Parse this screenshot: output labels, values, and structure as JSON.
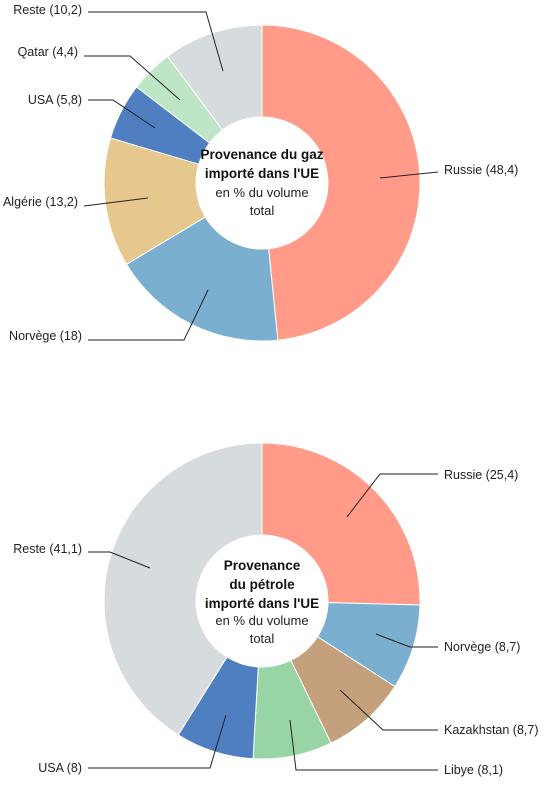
{
  "chart_data": [
    {
      "type": "pie",
      "title_lines": [
        "Provenance du gaz",
        "importé dans l'UE"
      ],
      "subtitle_lines": [
        "en % du volume",
        "total"
      ],
      "slices": [
        {
          "label": "Russie (48,4)",
          "value": 48.4,
          "color": "#FF9B88"
        },
        {
          "label": "Norvège (18)",
          "value": 18,
          "color": "#7BAFCF"
        },
        {
          "label": "Algérie (13,2)",
          "value": 13.2,
          "color": "#E6C88E"
        },
        {
          "label": "USA (5,8)",
          "value": 5.8,
          "color": "#4F7FC0"
        },
        {
          "label": "Qatar (4,4)",
          "value": 4.4,
          "color": "#BEE6C6"
        },
        {
          "label": "Reste (10,2)",
          "value": 10.2,
          "color": "#D6DCDE"
        }
      ]
    },
    {
      "type": "pie",
      "title_lines": [
        "Provenance",
        "du pétrole",
        "importé dans l'UE"
      ],
      "subtitle_lines": [
        "en % du volume",
        "total"
      ],
      "slices": [
        {
          "label": "Russie (25,4)",
          "value": 25.4,
          "color": "#FF9B88"
        },
        {
          "label": "Norvège (8,7)",
          "value": 8.7,
          "color": "#7BAFCF"
        },
        {
          "label": "Kazakhstan (8,7)",
          "value": 8.7,
          "color": "#C4A17C"
        },
        {
          "label": "Libye (8,1)",
          "value": 8.1,
          "color": "#98D4A4"
        },
        {
          "label": "USA (8)",
          "value": 8,
          "color": "#4F7FC0"
        },
        {
          "label": "Reste (41,1)",
          "value": 41.1,
          "color": "#D6DCDE"
        }
      ]
    }
  ]
}
